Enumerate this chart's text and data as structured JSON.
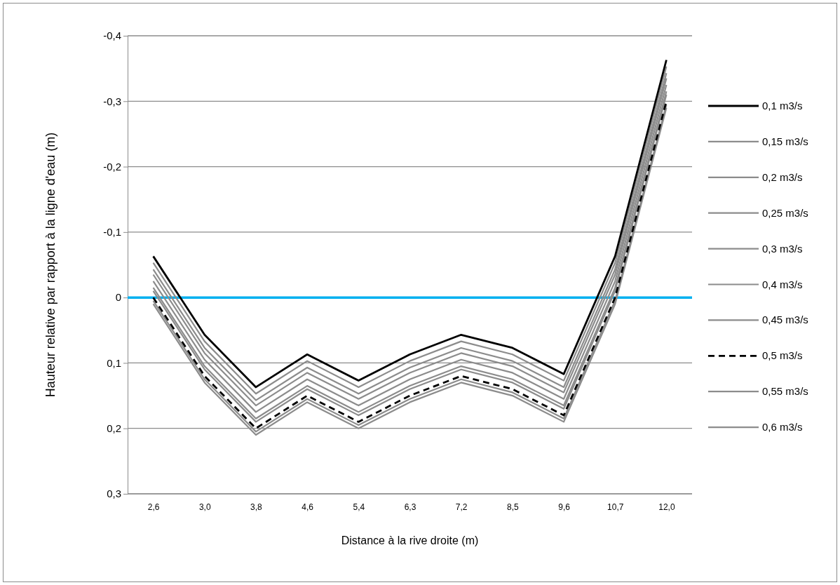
{
  "chart_data": {
    "type": "line",
    "xlabel": "Distance à la rive droite (m)",
    "ylabel": "Hauteur relative par rapport à la ligne d'eau (m)",
    "categories": [
      "2,6",
      "3,0",
      "3,8",
      "4,6",
      "5,4",
      "6,3",
      "7,2",
      "8,5",
      "9,6",
      "10,7",
      "12,0"
    ],
    "ylim": [
      0.3,
      -0.4
    ],
    "yticks": [
      {
        "value": -0.4,
        "label": "-0,4"
      },
      {
        "value": -0.3,
        "label": "-0,3"
      },
      {
        "value": -0.2,
        "label": "-0,2"
      },
      {
        "value": -0.1,
        "label": "-0,1"
      },
      0,
      {
        "value": 0.1,
        "label": "0,1"
      },
      {
        "value": 0.2,
        "label": "0,2"
      },
      {
        "value": 0.3,
        "label": "0,3"
      }
    ],
    "grid": "y",
    "legend": "right",
    "marker": "none",
    "ref_lines": [
      {
        "axis": "y",
        "value": 0,
        "color": "#00b0f0"
      }
    ],
    "series": [
      {
        "name": "0,1 m3/s",
        "color": "#000000",
        "line_style": "solid",
        "values": [
          -0.063,
          0.057,
          0.137,
          0.087,
          0.127,
          0.087,
          0.057,
          0.077,
          0.117,
          -0.063,
          -0.363
        ]
      },
      {
        "name": "0,15 m3/s",
        "color": "#8c8c8c",
        "line_style": "solid",
        "values": [
          -0.053,
          0.067,
          0.147,
          0.097,
          0.137,
          0.097,
          0.067,
          0.087,
          0.127,
          -0.053,
          -0.353
        ]
      },
      {
        "name": "0,2 m3/s",
        "color": "#8c8c8c",
        "line_style": "solid",
        "values": [
          -0.043,
          0.077,
          0.157,
          0.107,
          0.147,
          0.107,
          0.077,
          0.097,
          0.137,
          -0.043,
          -0.343
        ]
      },
      {
        "name": "0,25 m3/s",
        "color": "#8c8c8c",
        "line_style": "solid",
        "values": [
          -0.035,
          0.085,
          0.165,
          0.115,
          0.155,
          0.115,
          0.085,
          0.105,
          0.145,
          -0.035,
          -0.335
        ]
      },
      {
        "name": "0,3 m3/s",
        "color": "#8c8c8c",
        "line_style": "solid",
        "values": [
          -0.025,
          0.095,
          0.175,
          0.125,
          0.165,
          0.125,
          0.095,
          0.115,
          0.155,
          -0.025,
          -0.325
        ]
      },
      {
        "name": "0,4 m3/s",
        "color": "#8c8c8c",
        "line_style": "solid",
        "values": [
          -0.015,
          0.105,
          0.185,
          0.135,
          0.175,
          0.135,
          0.105,
          0.125,
          0.165,
          -0.015,
          -0.315
        ]
      },
      {
        "name": "0,45 m3/s",
        "color": "#8c8c8c",
        "line_style": "solid",
        "values": [
          -0.01,
          0.11,
          0.19,
          0.14,
          0.18,
          0.14,
          0.11,
          0.13,
          0.17,
          -0.01,
          -0.31
        ]
      },
      {
        "name": "0,5 m3/s",
        "color": "#000000",
        "line_style": "dashed",
        "values": [
          0,
          0.12,
          0.2,
          0.15,
          0.19,
          0.15,
          0.12,
          0.14,
          0.18,
          0,
          -0.3
        ]
      },
      {
        "name": "0,55 m3/s",
        "color": "#8c8c8c",
        "line_style": "solid",
        "values": [
          0.005,
          0.125,
          0.205,
          0.155,
          0.195,
          0.155,
          0.125,
          0.145,
          0.185,
          0.005,
          -0.295
        ]
      },
      {
        "name": "0,6 m3/s",
        "color": "#8c8c8c",
        "line_style": "solid",
        "values": [
          0.01,
          0.13,
          0.21,
          0.16,
          0.2,
          0.16,
          0.13,
          0.15,
          0.19,
          0.01,
          -0.29
        ]
      }
    ]
  }
}
